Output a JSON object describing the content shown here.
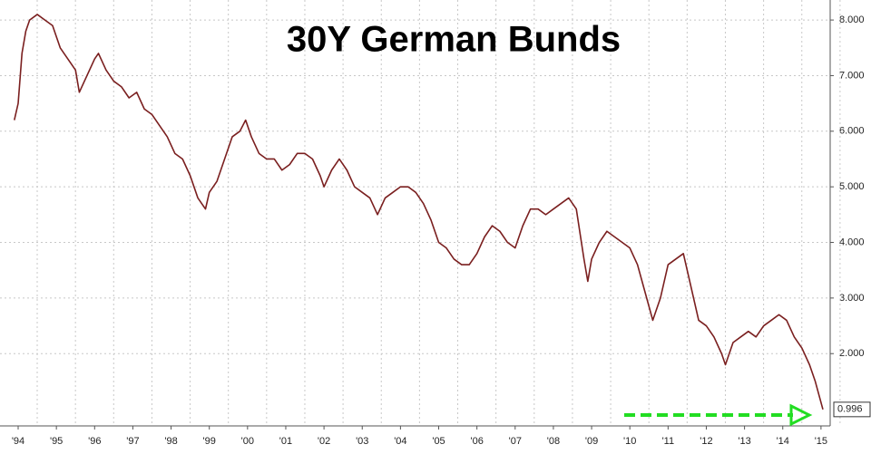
{
  "chart_data": {
    "type": "line",
    "title": "30Y German Bunds",
    "color": "#7a1f1f",
    "grid": true,
    "xlim": [
      1993.525,
      2015.24
    ],
    "ylim": [
      0.7,
      8.36
    ],
    "xticks": [
      {
        "value": 1994,
        "label": "'94"
      },
      {
        "value": 1995,
        "label": "'95"
      },
      {
        "value": 1996,
        "label": "'96"
      },
      {
        "value": 1997,
        "label": "'97"
      },
      {
        "value": 1998,
        "label": "'98"
      },
      {
        "value": 1999,
        "label": "'99"
      },
      {
        "value": 2000,
        "label": "'00"
      },
      {
        "value": 2001,
        "label": "'01"
      },
      {
        "value": 2002,
        "label": "'02"
      },
      {
        "value": 2003,
        "label": "'03"
      },
      {
        "value": 2004,
        "label": "'04"
      },
      {
        "value": 2005,
        "label": "'05"
      },
      {
        "value": 2006,
        "label": "'06"
      },
      {
        "value": 2007,
        "label": "'07"
      },
      {
        "value": 2008,
        "label": "'08"
      },
      {
        "value": 2009,
        "label": "'09"
      },
      {
        "value": 2010,
        "label": "'10"
      },
      {
        "value": 2011,
        "label": "'11"
      },
      {
        "value": 2012,
        "label": "'12"
      },
      {
        "value": 2013,
        "label": "'13"
      },
      {
        "value": 2014,
        "label": "'14"
      },
      {
        "value": 2015,
        "label": "'15"
      }
    ],
    "yticks": [
      {
        "value": 2,
        "label": "2.000"
      },
      {
        "value": 3,
        "label": "3.000"
      },
      {
        "value": 4,
        "label": "4.000"
      },
      {
        "value": 5,
        "label": "5.000"
      },
      {
        "value": 6,
        "label": "6.000"
      },
      {
        "value": 7,
        "label": "7.000"
      },
      {
        "value": 8,
        "label": "8.000"
      }
    ],
    "x": [
      1993.9,
      1994.0,
      1994.1,
      1994.2,
      1994.3,
      1994.5,
      1994.7,
      1994.9,
      1995.1,
      1995.3,
      1995.5,
      1995.6,
      1995.8,
      1996.0,
      1996.1,
      1996.3,
      1996.5,
      1996.7,
      1996.9,
      1997.1,
      1997.3,
      1997.5,
      1997.7,
      1997.9,
      1998.1,
      1998.3,
      1998.5,
      1998.7,
      1998.9,
      1999.0,
      1999.2,
      1999.4,
      1999.6,
      1999.8,
      1999.95,
      2000.1,
      2000.3,
      2000.5,
      2000.7,
      2000.9,
      2001.1,
      2001.3,
      2001.5,
      2001.7,
      2001.9,
      2002.0,
      2002.2,
      2002.4,
      2002.6,
      2002.8,
      2003.0,
      2003.2,
      2003.4,
      2003.6,
      2003.8,
      2004.0,
      2004.2,
      2004.4,
      2004.6,
      2004.8,
      2005.0,
      2005.2,
      2005.4,
      2005.6,
      2005.8,
      2006.0,
      2006.2,
      2006.4,
      2006.6,
      2006.8,
      2007.0,
      2007.2,
      2007.4,
      2007.6,
      2007.8,
      2008.0,
      2008.2,
      2008.4,
      2008.6,
      2008.8,
      2008.9,
      2009.0,
      2009.2,
      2009.4,
      2009.6,
      2009.8,
      2010.0,
      2010.2,
      2010.4,
      2010.6,
      2010.8,
      2011.0,
      2011.2,
      2011.4,
      2011.6,
      2011.8,
      2012.0,
      2012.2,
      2012.4,
      2012.5,
      2012.7,
      2012.9,
      2013.1,
      2013.3,
      2013.5,
      2013.7,
      2013.9,
      2014.1,
      2014.3,
      2014.5,
      2014.7,
      2014.85,
      2015.05
    ],
    "values": [
      6.2,
      6.5,
      7.4,
      7.8,
      8.0,
      8.1,
      8.0,
      7.9,
      7.5,
      7.3,
      7.1,
      6.7,
      7.0,
      7.3,
      7.4,
      7.1,
      6.9,
      6.8,
      6.6,
      6.7,
      6.4,
      6.3,
      6.1,
      5.9,
      5.6,
      5.5,
      5.2,
      4.8,
      4.6,
      4.9,
      5.1,
      5.5,
      5.9,
      6.0,
      6.2,
      5.9,
      5.6,
      5.5,
      5.5,
      5.3,
      5.4,
      5.6,
      5.6,
      5.5,
      5.2,
      5.0,
      5.3,
      5.5,
      5.3,
      5.0,
      4.9,
      4.8,
      4.5,
      4.8,
      4.9,
      5.0,
      5.0,
      4.9,
      4.7,
      4.4,
      4.0,
      3.9,
      3.7,
      3.6,
      3.6,
      3.8,
      4.1,
      4.3,
      4.2,
      4.0,
      3.9,
      4.3,
      4.6,
      4.6,
      4.5,
      4.6,
      4.7,
      4.8,
      4.6,
      3.7,
      3.3,
      3.7,
      4.0,
      4.2,
      4.1,
      4.0,
      3.9,
      3.6,
      3.1,
      2.6,
      3.0,
      3.6,
      3.7,
      3.8,
      3.2,
      2.6,
      2.5,
      2.3,
      2.0,
      1.8,
      2.2,
      2.3,
      2.4,
      2.3,
      2.5,
      2.6,
      2.7,
      2.6,
      2.3,
      2.1,
      1.8,
      1.5,
      0.996
    ]
  }
}
